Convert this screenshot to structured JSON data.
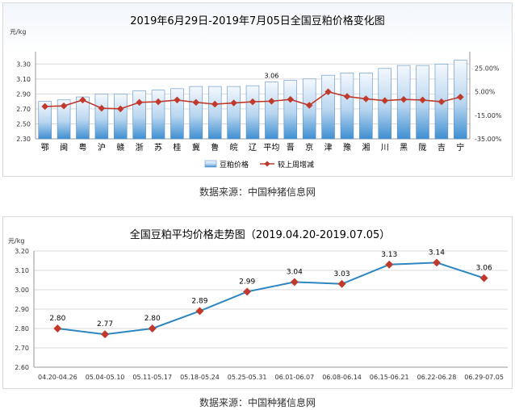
{
  "chart_data": [
    {
      "type": "bar",
      "title": "2019年6月29日-2019年7月05日全国豆粕价格变化图",
      "y_unit": "元/kg",
      "ylim": [
        2.3,
        3.4
      ],
      "yticks": [
        "2.30",
        "2.50",
        "2.70",
        "2.90",
        "3.10",
        "3.30"
      ],
      "y2lim": [
        -35.0,
        35.0
      ],
      "y2ticks": [
        "-35.00%",
        "-15.00%",
        "5.00%",
        "25.00%"
      ],
      "grid": true,
      "legend_position": "bottom",
      "categories": [
        "鄂",
        "闽",
        "粤",
        "沪",
        "赣",
        "浙",
        "苏",
        "桂",
        "冀",
        "鲁",
        "皖",
        "辽",
        "平均",
        "晋",
        "京",
        "津",
        "豫",
        "湘",
        "川",
        "黑",
        "陇",
        "吉",
        "宁"
      ],
      "series": [
        {
          "name": "豆粕价格",
          "type": "bar",
          "axis": "left",
          "values": [
            2.8,
            2.82,
            2.86,
            2.9,
            2.9,
            2.94,
            2.95,
            2.97,
            3.0,
            3.0,
            3.0,
            3.01,
            3.06,
            3.08,
            3.1,
            3.15,
            3.18,
            3.18,
            3.24,
            3.28,
            3.28,
            3.3,
            3.35
          ]
        },
        {
          "name": "较上周增减",
          "type": "line",
          "axis": "right",
          "color": "#c0392b",
          "values": [
            -7.5,
            -7.0,
            -2.0,
            -9.0,
            -9.5,
            -4.0,
            -3.5,
            -2.0,
            -4.0,
            -5.5,
            -4.5,
            -3.5,
            -3.0,
            -1.5,
            -6.5,
            5.0,
            1.0,
            -1.0,
            -2.5,
            -1.5,
            -2.0,
            -3.5,
            0.5
          ]
        }
      ],
      "data_labels": [
        {
          "category": "平均",
          "text": "3.06"
        }
      ]
    },
    {
      "type": "line",
      "title": "全国豆粕平均价格走势图（2019.04.20-2019.07.05）",
      "y_unit": "元/kg",
      "ylim": [
        2.6,
        3.2
      ],
      "yticks": [
        "2.60",
        "2.70",
        "2.80",
        "2.90",
        "3.00",
        "3.10",
        "3.20"
      ],
      "grid": true,
      "categories": [
        "04.20-04.26",
        "05.04-05.10",
        "05.11-05.17",
        "05.18-05.24",
        "05.25-05.31",
        "06.01-06.07",
        "06.08-06.14",
        "06.15-06.21",
        "06.22-06.28",
        "06.29-07.05"
      ],
      "series": [
        {
          "type": "line",
          "color": "#2e86c1",
          "marker_color": "#c0392b",
          "values": [
            2.8,
            2.77,
            2.8,
            2.89,
            2.99,
            3.04,
            3.03,
            3.13,
            3.14,
            3.06
          ],
          "labels": [
            "2.80",
            "2.77",
            "2.80",
            "2.89",
            "2.99",
            "3.04",
            "3.03",
            "3.13",
            "3.14",
            "3.06"
          ]
        }
      ]
    }
  ],
  "source_note_1": "数据来源：中国种猪信息网",
  "source_note_2": "数据来源：中国种猪信息网"
}
